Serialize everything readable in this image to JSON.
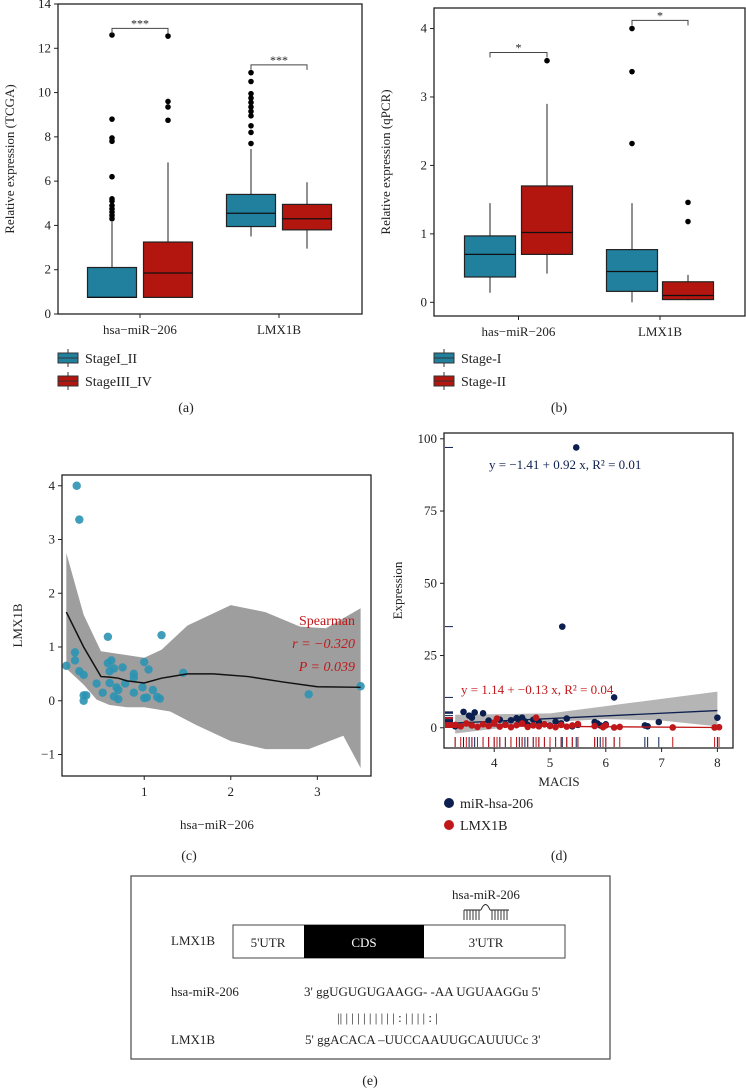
{
  "colors": {
    "blue": "#21809e",
    "red": "#b3150f",
    "navy": "#0d1f4f",
    "lmx_red": "#c0181a",
    "band": "#9e9e9e",
    "point_c": "#2b94b3",
    "stat_red": "#c0181a"
  },
  "panels": {
    "a": {
      "caption": "(a)"
    },
    "b": {
      "caption": "(b)"
    },
    "c": {
      "caption": "(c)",
      "stat_title": "Spearman",
      "stat_r": "r = −0.320",
      "stat_p": "P = 0.039"
    },
    "d": {
      "caption": "(d)",
      "eq_mir": "y = −1.41 + 0.92  x,   R² = 0.01",
      "eq_lmx": "y = 1.14 + −0.13  x,   R² = 0.04"
    },
    "e": {
      "caption": "(e)",
      "gene_label": "LMX1B",
      "mirna_label": "hsa-miR-206",
      "segments": [
        "5'UTR",
        "CDS",
        "3'UTR"
      ],
      "row1_label": "hsa-miR-206",
      "row1_seq": "3' ggUGUGUGAAGG-   -AA UGUAAGGu   5'",
      "pairing": "|| | | |    | | | |     | | : | | | | : |",
      "row2_label": "LMX1B",
      "row2_seq": "5' ggACACA  –UUCCAAUUGCAUUUCc   3'"
    }
  },
  "chart_data": [
    {
      "type": "box",
      "ylabel": "Relative expression (TCGA)",
      "ylim": [
        0,
        14
      ],
      "yticks": [
        0,
        2,
        4,
        6,
        8,
        10,
        12,
        14
      ],
      "categories": [
        "hsa−miR−206",
        "LMX1B"
      ],
      "legend": [
        {
          "name": "StageI_II",
          "color": "#21809e"
        },
        {
          "name": "StageIII_IV",
          "color": "#b3150f"
        }
      ],
      "legend_position": "bottom-left",
      "boxes": [
        {
          "category": "hsa−miR−206",
          "series": "StageI_II",
          "min": 0.75,
          "q1": 0.75,
          "median": 0.75,
          "q3": 2.1,
          "max": 4.15,
          "outliers": [
            4.3,
            4.45,
            4.6,
            4.75,
            4.9,
            5.1,
            5.2,
            6.2,
            7.8,
            7.95,
            8.8,
            12.6
          ]
        },
        {
          "category": "hsa−miR−206",
          "series": "StageIII_IV",
          "min": 0.75,
          "q1": 0.75,
          "median": 1.85,
          "q3": 3.25,
          "max": 6.85,
          "outliers": [
            8.75,
            9.35,
            9.6,
            12.55
          ]
        },
        {
          "category": "LMX1B",
          "series": "StageI_II",
          "min": 3.5,
          "q1": 3.95,
          "median": 4.55,
          "q3": 5.4,
          "max": 7.45,
          "outliers": [
            7.7,
            8.2,
            8.5,
            8.95,
            9.15,
            9.35,
            9.55,
            9.75,
            9.95,
            10.5,
            10.9
          ]
        },
        {
          "category": "LMX1B",
          "series": "StageIII_IV",
          "min": 2.95,
          "q1": 3.8,
          "median": 4.3,
          "q3": 4.95,
          "max": 5.95,
          "outliers": []
        }
      ],
      "significance": [
        {
          "category": "hsa−miR−206",
          "label": "***",
          "y": 12.9
        },
        {
          "category": "LMX1B",
          "label": "***",
          "y": 11.25
        }
      ]
    },
    {
      "type": "box",
      "ylabel": "Relative expression (qPCR)",
      "ylim": [
        -0.2,
        4.3
      ],
      "yticks": [
        0,
        1,
        2,
        3,
        4
      ],
      "categories": [
        "has−miR−206",
        "LMX1B"
      ],
      "legend": [
        {
          "name": "Stage-I",
          "color": "#21809e"
        },
        {
          "name": "Stage-II",
          "color": "#b3150f"
        }
      ],
      "legend_position": "bottom-left",
      "boxes": [
        {
          "category": "has−miR−206",
          "series": "Stage-I",
          "min": 0.14,
          "q1": 0.37,
          "median": 0.7,
          "q3": 0.97,
          "max": 1.45,
          "outliers": []
        },
        {
          "category": "has−miR−206",
          "series": "Stage-II",
          "min": 0.42,
          "q1": 0.7,
          "median": 1.02,
          "q3": 1.7,
          "max": 2.9,
          "outliers": [
            3.53
          ]
        },
        {
          "category": "LMX1B",
          "series": "Stage-I",
          "min": 0.0,
          "q1": 0.16,
          "median": 0.45,
          "q3": 0.77,
          "max": 1.45,
          "outliers": [
            2.32,
            3.37,
            4.0
          ]
        },
        {
          "category": "LMX1B",
          "series": "Stage-II",
          "min": 0.03,
          "q1": 0.04,
          "median": 0.1,
          "q3": 0.3,
          "max": 0.4,
          "outliers": [
            1.18,
            1.46
          ]
        }
      ],
      "significance": [
        {
          "category": "has−miR−206",
          "label": "*",
          "y": 3.65
        },
        {
          "category": "LMX1B",
          "label": "*",
          "y": 4.12
        }
      ]
    },
    {
      "type": "scatter",
      "xlabel": "hsa−miR−206",
      "ylabel": "LMX1B",
      "xlim": [
        0.05,
        3.62
      ],
      "ylim": [
        -1.4,
        4.2
      ],
      "xticks": [
        1,
        2,
        3
      ],
      "yticks": [
        -1,
        0,
        1,
        2,
        3,
        4
      ],
      "points": [
        [
          0.1,
          0.65
        ],
        [
          0.2,
          0.9
        ],
        [
          0.2,
          0.75
        ],
        [
          0.22,
          4.0
        ],
        [
          0.25,
          3.37
        ],
        [
          0.25,
          0.55
        ],
        [
          0.3,
          0.48
        ],
        [
          0.3,
          0.1
        ],
        [
          0.3,
          0.0
        ],
        [
          0.33,
          0.1
        ],
        [
          0.45,
          0.32
        ],
        [
          0.52,
          0.15
        ],
        [
          0.58,
          1.19
        ],
        [
          0.58,
          0.7
        ],
        [
          0.6,
          0.55
        ],
        [
          0.6,
          0.33
        ],
        [
          0.62,
          0.75
        ],
        [
          0.65,
          0.6
        ],
        [
          0.65,
          0.08
        ],
        [
          0.68,
          0.25
        ],
        [
          0.7,
          0.03
        ],
        [
          0.7,
          0.2
        ],
        [
          0.75,
          0.62
        ],
        [
          0.78,
          0.32
        ],
        [
          0.88,
          0.15
        ],
        [
          0.88,
          0.5
        ],
        [
          0.88,
          0.43
        ],
        [
          0.98,
          0.25
        ],
        [
          1.0,
          0.72
        ],
        [
          1.0,
          0.05
        ],
        [
          1.03,
          0.06
        ],
        [
          1.05,
          0.58
        ],
        [
          1.1,
          0.2
        ],
        [
          1.15,
          0.07
        ],
        [
          1.18,
          0.04
        ],
        [
          1.2,
          1.22
        ],
        [
          1.45,
          0.52
        ],
        [
          2.9,
          0.12
        ],
        [
          3.5,
          0.27
        ]
      ],
      "smooth": [
        [
          0.1,
          1.65
        ],
        [
          0.3,
          1.0
        ],
        [
          0.5,
          0.45
        ],
        [
          0.6,
          0.44
        ],
        [
          0.7,
          0.42
        ],
        [
          0.8,
          0.37
        ],
        [
          1.0,
          0.33
        ],
        [
          1.2,
          0.42
        ],
        [
          1.5,
          0.5
        ],
        [
          1.8,
          0.5
        ],
        [
          2.2,
          0.45
        ],
        [
          2.6,
          0.35
        ],
        [
          3.0,
          0.26
        ],
        [
          3.5,
          0.25
        ]
      ],
      "band_upper": [
        [
          0.1,
          2.75
        ],
        [
          0.3,
          1.6
        ],
        [
          0.5,
          0.92
        ],
        [
          0.8,
          0.85
        ],
        [
          1.0,
          0.8
        ],
        [
          1.2,
          0.95
        ],
        [
          1.5,
          1.4
        ],
        [
          2.0,
          1.78
        ],
        [
          2.4,
          1.65
        ],
        [
          2.8,
          1.38
        ],
        [
          3.1,
          1.35
        ],
        [
          3.5,
          1.72
        ]
      ],
      "band_lower": [
        [
          0.1,
          0.6
        ],
        [
          0.3,
          0.3
        ],
        [
          0.45,
          0.02
        ],
        [
          0.6,
          -0.08
        ],
        [
          0.8,
          -0.12
        ],
        [
          1.0,
          -0.12
        ],
        [
          1.3,
          -0.2
        ],
        [
          1.6,
          -0.45
        ],
        [
          2.0,
          -0.75
        ],
        [
          2.4,
          -0.9
        ],
        [
          2.9,
          -0.9
        ],
        [
          3.3,
          -0.65
        ],
        [
          3.5,
          -1.25
        ]
      ]
    },
    {
      "type": "scatter",
      "xlabel": "MACIS",
      "ylabel": "Expression",
      "xlim": [
        3.1,
        8.28
      ],
      "ylim": [
        -7,
        102
      ],
      "xticks": [
        4,
        5,
        6,
        7,
        8
      ],
      "yticks": [
        0,
        25,
        50,
        75,
        100
      ],
      "legend_position": "bottom-left",
      "series": [
        {
          "name": "miR-hsa-206",
          "color": "#0d1f4f",
          "fit": {
            "intercept": -1.41,
            "slope": 0.92
          },
          "points": [
            [
              5.47,
              97
            ],
            [
              5.22,
              35
            ],
            [
              6.15,
              10.5
            ],
            [
              3.3,
              0.5
            ],
            [
              3.45,
              5.5
            ],
            [
              3.55,
              4.2
            ],
            [
              3.6,
              3.5
            ],
            [
              3.65,
              5.3
            ],
            [
              3.8,
              5
            ],
            [
              3.9,
              2.5
            ],
            [
              4.0,
              1.5
            ],
            [
              4.1,
              2.8
            ],
            [
              4.2,
              1.2
            ],
            [
              4.3,
              2.6
            ],
            [
              4.4,
              3.3
            ],
            [
              4.45,
              1.8
            ],
            [
              4.5,
              3.5
            ],
            [
              4.55,
              2.2
            ],
            [
              4.6,
              1.0
            ],
            [
              4.7,
              2.8
            ],
            [
              4.8,
              2.0
            ],
            [
              4.9,
              1.2
            ],
            [
              5.0,
              0.8
            ],
            [
              5.1,
              2.1
            ],
            [
              5.2,
              1.5
            ],
            [
              5.3,
              3.2
            ],
            [
              5.4,
              0.5
            ],
            [
              5.5,
              1.0
            ],
            [
              5.8,
              2.0
            ],
            [
              5.85,
              1.5
            ],
            [
              5.9,
              0.8
            ],
            [
              6.0,
              1.2
            ],
            [
              6.7,
              0.8
            ],
            [
              6.75,
              0.5
            ],
            [
              6.95,
              2.0
            ],
            [
              8.0,
              3.5
            ]
          ]
        },
        {
          "name": "LMX1B",
          "color": "#c0181a",
          "fit": {
            "intercept": 1.14,
            "slope": -0.13
          },
          "points": [
            [
              3.3,
              1.0
            ],
            [
              3.4,
              0.5
            ],
            [
              3.5,
              1.5
            ],
            [
              3.6,
              0.8
            ],
            [
              3.7,
              0.3
            ],
            [
              3.8,
              1.2
            ],
            [
              3.9,
              0.6
            ],
            [
              4.0,
              1.8
            ],
            [
              4.05,
              3.2
            ],
            [
              4.1,
              0.4
            ],
            [
              4.2,
              1.0
            ],
            [
              4.3,
              0.2
            ],
            [
              4.4,
              0.9
            ],
            [
              4.5,
              1.5
            ],
            [
              4.6,
              0.3
            ],
            [
              4.7,
              0.8
            ],
            [
              4.75,
              3.5
            ],
            [
              4.8,
              0.5
            ],
            [
              4.9,
              1.2
            ],
            [
              5.0,
              0.6
            ],
            [
              5.1,
              0.2
            ],
            [
              5.2,
              1.0
            ],
            [
              5.3,
              0.4
            ],
            [
              5.4,
              0.8
            ],
            [
              5.5,
              1.3
            ],
            [
              5.8,
              0.6
            ],
            [
              5.95,
              0.2
            ],
            [
              6.0,
              0.8
            ],
            [
              6.15,
              0.1
            ],
            [
              6.25,
              0.3
            ],
            [
              7.2,
              0.1
            ],
            [
              7.95,
              0.1
            ],
            [
              8.03,
              0.2
            ]
          ]
        }
      ],
      "band_upper": [
        [
          3.3,
          4.5
        ],
        [
          5.0,
          5.0
        ],
        [
          6.0,
          7.5
        ],
        [
          7.0,
          10.0
        ],
        [
          8.0,
          12.5
        ]
      ],
      "band_lower": [
        [
          3.3,
          -2.0
        ],
        [
          5.0,
          2.0
        ],
        [
          6.0,
          3.0
        ],
        [
          7.0,
          2.5
        ],
        [
          8.0,
          0.5
        ]
      ]
    }
  ]
}
